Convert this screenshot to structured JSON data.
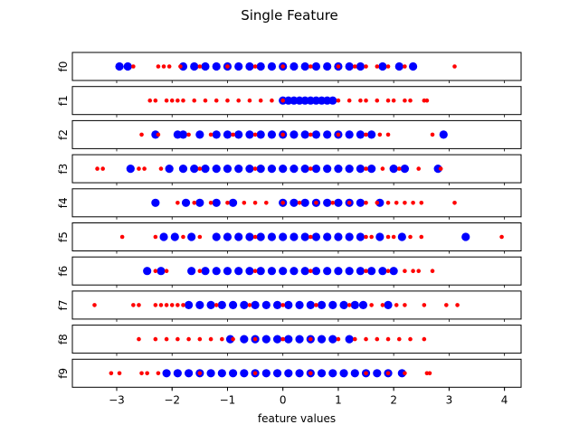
{
  "chart_data": {
    "type": "scatter",
    "title": "Single Feature",
    "xlabel": "feature values",
    "xlim": [
      -3.8,
      4.3
    ],
    "x_ticks": [
      -3,
      -2,
      -1,
      0,
      1,
      2,
      3,
      4
    ],
    "series": [
      {
        "color": "#0000ff",
        "marker": "large-circle"
      },
      {
        "color": "#ff0000",
        "marker": "small-circle"
      }
    ],
    "panels": [
      {
        "label": "f0",
        "blue": [
          -2.95,
          -2.8,
          -1.8,
          -1.6,
          -1.4,
          -1.2,
          -1.0,
          -0.8,
          -0.6,
          -0.4,
          -0.2,
          0.0,
          0.2,
          0.4,
          0.6,
          0.8,
          1.0,
          1.2,
          1.4,
          1.8,
          2.1,
          2.35
        ],
        "red": [
          -2.7,
          -2.25,
          -2.15,
          -2.05,
          -1.85,
          -1.5,
          -1.0,
          -0.5,
          0.0,
          0.5,
          1.0,
          1.3,
          1.5,
          1.7,
          1.9,
          2.2,
          3.1
        ]
      },
      {
        "label": "f1",
        "blue": [
          0.0,
          0.1,
          0.2,
          0.3,
          0.4,
          0.5,
          0.6,
          0.7,
          0.8,
          0.9
        ],
        "red": [
          -2.4,
          -2.3,
          -2.1,
          -2.0,
          -1.9,
          -1.8,
          -1.6,
          -1.4,
          -1.2,
          -1.0,
          -0.8,
          -0.6,
          -0.4,
          -0.2,
          0.0,
          1.0,
          1.2,
          1.4,
          1.5,
          1.7,
          1.9,
          2.0,
          2.2,
          2.3,
          2.55,
          2.6
        ]
      },
      {
        "label": "f2",
        "blue": [
          -2.3,
          -1.9,
          -1.8,
          -1.5,
          -1.2,
          -1.0,
          -0.8,
          -0.6,
          -0.4,
          -0.2,
          0.0,
          0.2,
          0.4,
          0.6,
          0.8,
          1.0,
          1.2,
          1.4,
          1.6,
          2.9
        ],
        "red": [
          -2.55,
          -2.25,
          -1.7,
          -1.3,
          -0.9,
          -0.5,
          0.0,
          0.5,
          1.0,
          1.5,
          1.75,
          1.9,
          2.7
        ]
      },
      {
        "label": "f3",
        "blue": [
          -2.75,
          -2.05,
          -1.8,
          -1.6,
          -1.4,
          -1.2,
          -1.0,
          -0.8,
          -0.6,
          -0.4,
          -0.2,
          0.0,
          0.2,
          0.4,
          0.6,
          0.8,
          1.0,
          1.2,
          1.4,
          1.6,
          2.0,
          2.2,
          2.8
        ],
        "red": [
          -3.35,
          -3.25,
          -2.6,
          -2.5,
          -2.2,
          -1.5,
          -0.5,
          0.5,
          1.5,
          1.8,
          2.1,
          2.45,
          2.85
        ]
      },
      {
        "label": "f4",
        "blue": [
          -2.3,
          -1.75,
          -1.5,
          -1.2,
          -0.9,
          0.0,
          0.2,
          0.4,
          0.6,
          0.8,
          1.0,
          1.2,
          1.4,
          1.75
        ],
        "red": [
          -1.9,
          -1.6,
          -1.3,
          -1.0,
          -0.7,
          -0.5,
          -0.3,
          0.0,
          0.3,
          0.6,
          0.9,
          1.2,
          1.5,
          1.7,
          1.9,
          2.05,
          2.2,
          2.35,
          2.5,
          3.1
        ]
      },
      {
        "label": "f5",
        "blue": [
          -2.15,
          -1.95,
          -1.65,
          -1.2,
          -1.0,
          -0.8,
          -0.6,
          -0.4,
          -0.2,
          0.0,
          0.2,
          0.4,
          0.6,
          0.8,
          1.0,
          1.2,
          1.4,
          1.75,
          2.15,
          3.3
        ],
        "red": [
          -2.9,
          -2.3,
          -1.8,
          -1.5,
          -0.5,
          0.5,
          1.5,
          1.6,
          1.9,
          2.0,
          2.3,
          2.5,
          3.95
        ]
      },
      {
        "label": "f6",
        "blue": [
          -2.45,
          -2.2,
          -1.65,
          -1.4,
          -1.2,
          -1.0,
          -0.8,
          -0.6,
          -0.4,
          -0.2,
          0.0,
          0.2,
          0.4,
          0.6,
          0.8,
          1.0,
          1.2,
          1.4,
          1.6,
          1.8,
          2.0
        ],
        "red": [
          -2.3,
          -2.1,
          -1.5,
          -0.5,
          0.5,
          1.5,
          1.9,
          2.2,
          2.35,
          2.45,
          2.7
        ]
      },
      {
        "label": "f7",
        "blue": [
          -1.7,
          -1.5,
          -1.3,
          -1.1,
          -0.9,
          -0.7,
          -0.5,
          -0.3,
          -0.1,
          0.1,
          0.3,
          0.5,
          0.7,
          0.9,
          1.1,
          1.3,
          1.45,
          1.9
        ],
        "red": [
          -3.4,
          -2.7,
          -2.6,
          -2.3,
          -2.2,
          -2.1,
          -2.0,
          -1.9,
          -1.8,
          -1.2,
          -0.6,
          0.0,
          0.6,
          1.2,
          1.6,
          1.8,
          2.05,
          2.2,
          2.55,
          2.95,
          3.15
        ]
      },
      {
        "label": "f8",
        "blue": [
          -0.95,
          -0.7,
          -0.5,
          -0.3,
          -0.1,
          0.1,
          0.3,
          0.5,
          0.7,
          0.9,
          1.2
        ],
        "red": [
          -2.6,
          -2.3,
          -2.1,
          -1.9,
          -1.7,
          -1.5,
          -1.3,
          -1.1,
          -0.9,
          -0.5,
          0.0,
          0.5,
          1.0,
          1.3,
          1.5,
          1.7,
          1.9,
          2.1,
          2.3,
          2.55
        ]
      },
      {
        "label": "f9",
        "blue": [
          -2.1,
          -1.9,
          -1.7,
          -1.5,
          -1.3,
          -1.1,
          -0.9,
          -0.7,
          -0.5,
          -0.3,
          -0.1,
          0.1,
          0.3,
          0.5,
          0.7,
          0.9,
          1.1,
          1.3,
          1.5,
          1.7,
          1.9,
          2.15
        ],
        "red": [
          -3.1,
          -2.95,
          -2.55,
          -2.45,
          -2.25,
          -1.5,
          -0.5,
          0.5,
          1.5,
          1.9,
          2.2,
          2.6,
          2.65
        ]
      }
    ]
  }
}
